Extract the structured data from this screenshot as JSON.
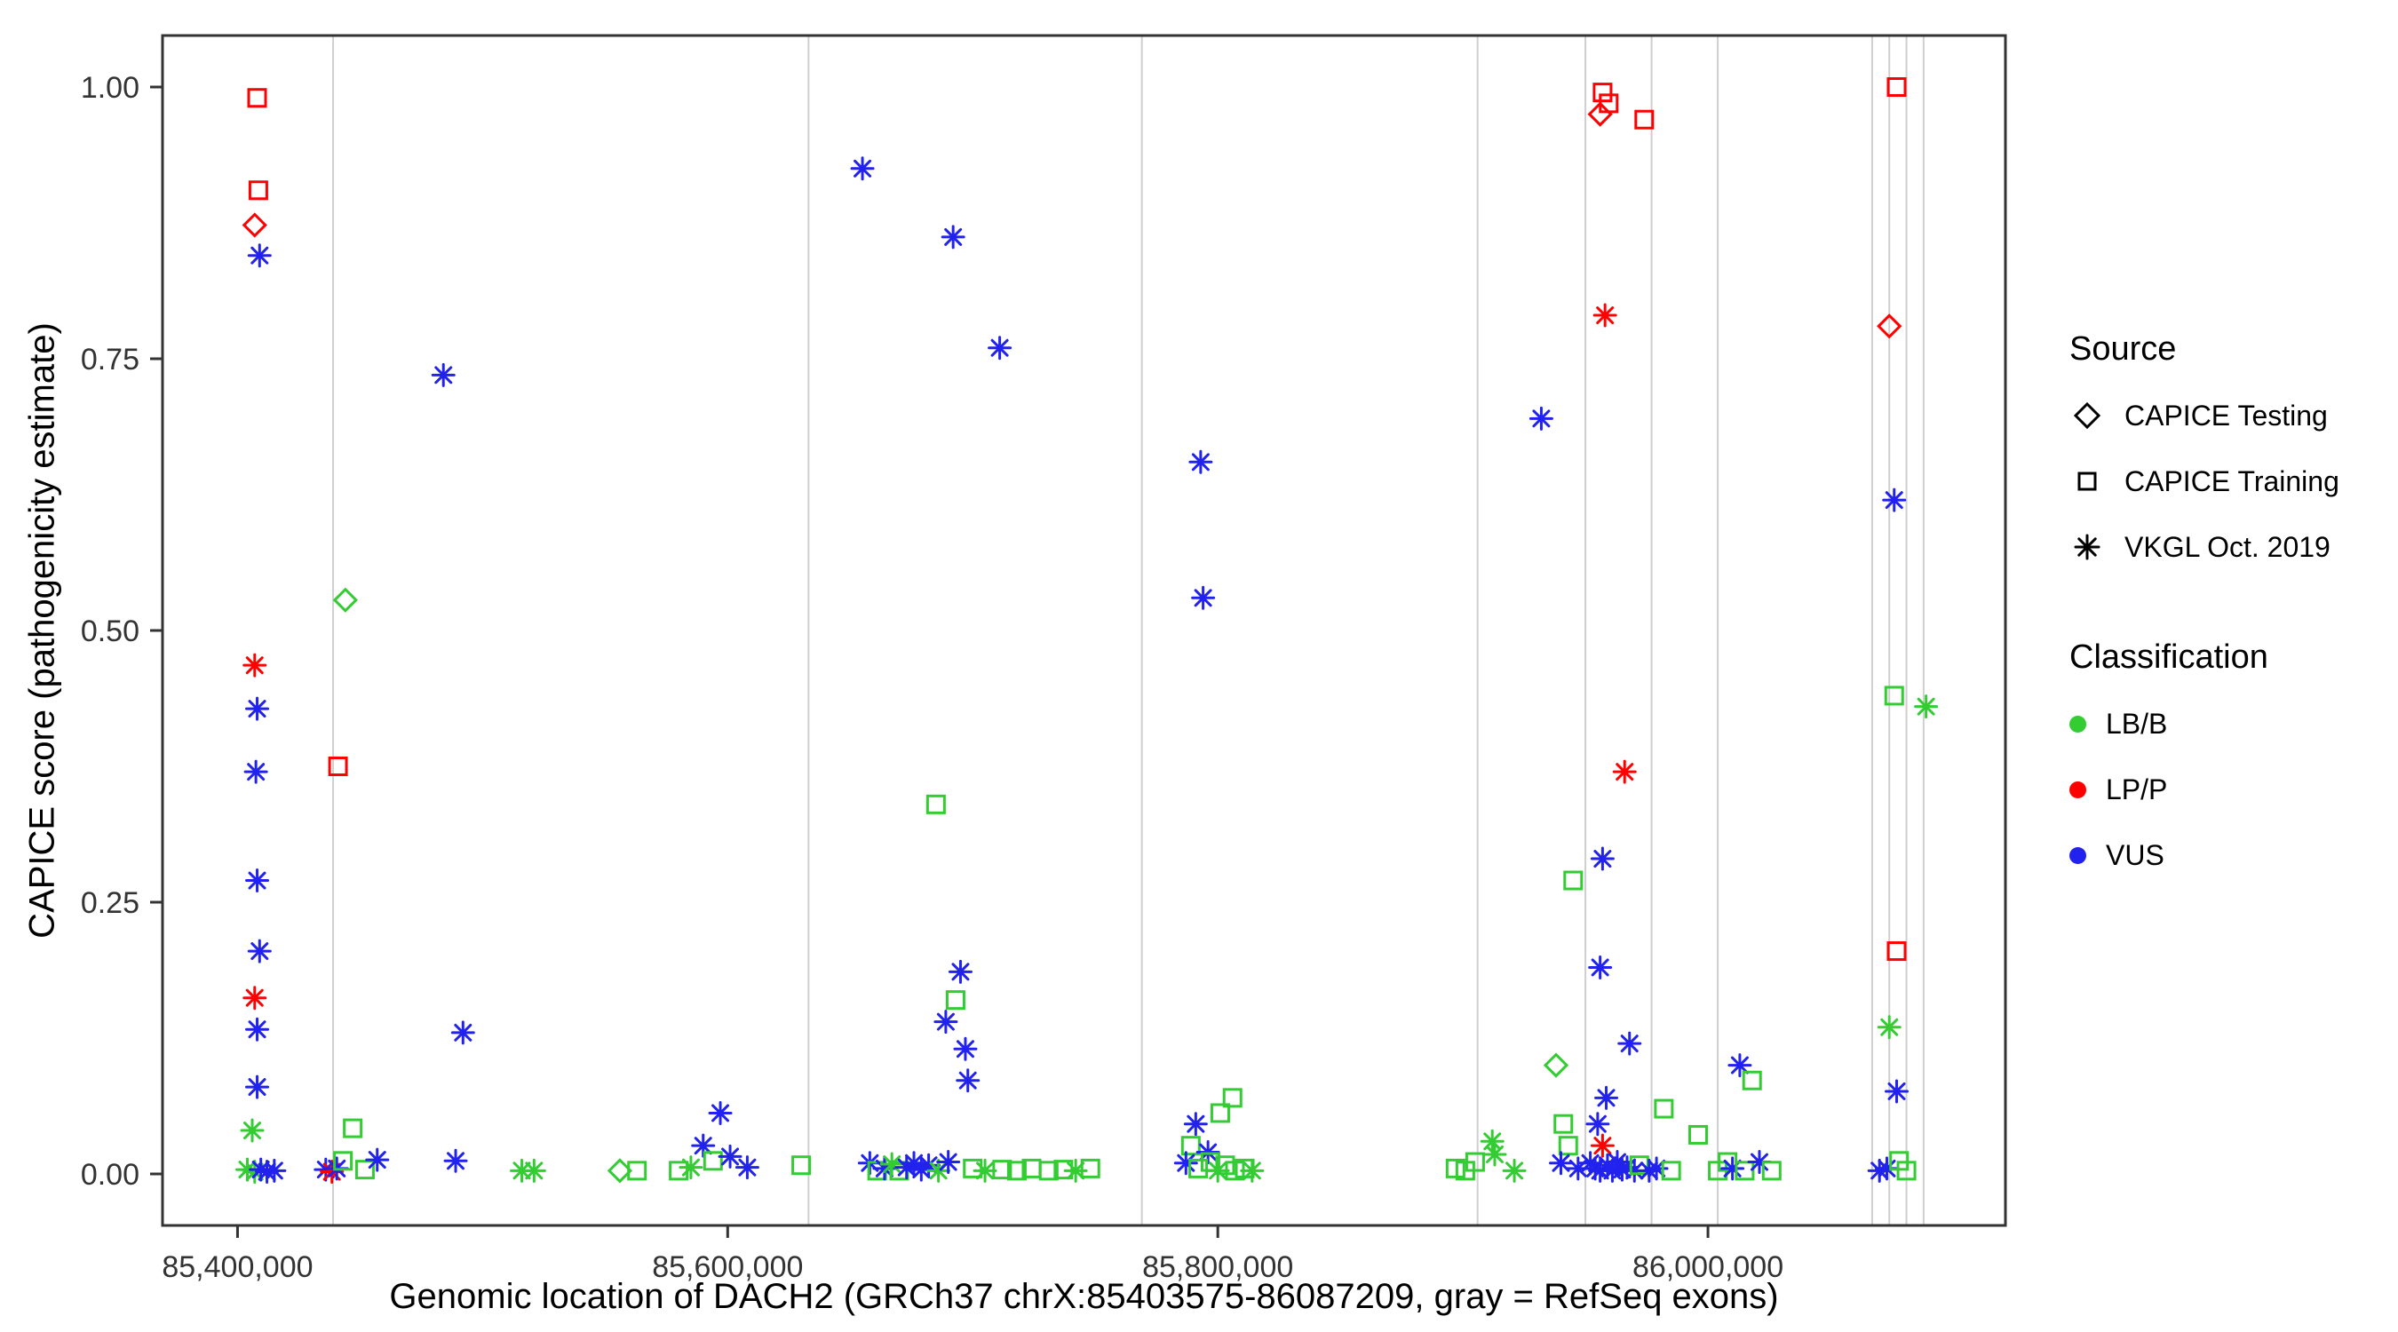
{
  "figure": {
    "x_axis_label": "Genomic location of DACH2 (GRCh37 chrX:85403575-86087209, gray = RefSeq exons)",
    "y_axis_label": "CAPICE score (pathogenicity estimate)"
  },
  "legend": {
    "source": {
      "title": "Source",
      "items": [
        {
          "label": "CAPICE Testing",
          "marker": "diamond"
        },
        {
          "label": "CAPICE Training",
          "marker": "square"
        },
        {
          "label": "VKGL Oct. 2019",
          "marker": "asterisk"
        }
      ]
    },
    "classification": {
      "title": "Classification",
      "items": [
        {
          "label": "LB/B",
          "color": "#33CC33"
        },
        {
          "label": "LP/P",
          "color": "#FF0000"
        },
        {
          "label": "VUS",
          "color": "#2222EE"
        }
      ]
    }
  },
  "chart_data": {
    "type": "scatter",
    "title": "",
    "xlabel": "Genomic location of DACH2 (GRCh37 chrX:85403575-86087209, gray = RefSeq exons)",
    "ylabel": "CAPICE score (pathogenicity estimate)",
    "xlim": [
      85369393,
      86121390
    ],
    "ylim": [
      0,
      1
    ],
    "grid": false,
    "legend_position": "right",
    "x_ticks": [
      {
        "value": 85400000,
        "label": "85,400,000"
      },
      {
        "value": 85600000,
        "label": "85,600,000"
      },
      {
        "value": 85800000,
        "label": "85,800,000"
      },
      {
        "value": 86000000,
        "label": "86,000,000"
      }
    ],
    "y_ticks": [
      {
        "value": 0.0,
        "label": "0.00"
      },
      {
        "value": 0.25,
        "label": "0.25"
      },
      {
        "value": 0.5,
        "label": "0.50"
      },
      {
        "value": 0.75,
        "label": "0.75"
      },
      {
        "value": 1.0,
        "label": "1.00"
      }
    ],
    "exon_line_color": "#CFCFCF",
    "exon_positions": [
      85439000,
      85633000,
      85769000,
      85906000,
      85950000,
      85977000,
      86004000,
      86067000,
      86074000,
      86081000,
      86088000
    ],
    "source_codes": {
      "testing": {
        "label": "CAPICE Testing",
        "marker": "diamond"
      },
      "training": {
        "label": "CAPICE Training",
        "marker": "square"
      },
      "vkgl": {
        "label": "VKGL Oct. 2019",
        "marker": "asterisk"
      }
    },
    "class_codes": {
      "LB": {
        "label": "LB/B",
        "color": "#33CC33"
      },
      "LP": {
        "label": "LP/P",
        "color": "#FF0000"
      },
      "VUS": {
        "label": "VUS",
        "color": "#2222EE"
      }
    },
    "points": [
      [
        85408000,
        0.99,
        "training",
        "LP"
      ],
      [
        85408500,
        0.905,
        "training",
        "LP"
      ],
      [
        85407000,
        0.873,
        "testing",
        "LP"
      ],
      [
        85409000,
        0.845,
        "vkgl",
        "VUS"
      ],
      [
        85407000,
        0.468,
        "vkgl",
        "LP"
      ],
      [
        85408000,
        0.428,
        "vkgl",
        "VUS"
      ],
      [
        85407500,
        0.37,
        "vkgl",
        "VUS"
      ],
      [
        85408000,
        0.27,
        "vkgl",
        "VUS"
      ],
      [
        85409000,
        0.205,
        "vkgl",
        "VUS"
      ],
      [
        85407000,
        0.162,
        "vkgl",
        "LP"
      ],
      [
        85408000,
        0.133,
        "vkgl",
        "VUS"
      ],
      [
        85408000,
        0.08,
        "vkgl",
        "VUS"
      ],
      [
        85406000,
        0.04,
        "vkgl",
        "LB"
      ],
      [
        85404000,
        0.004,
        "vkgl",
        "LB"
      ],
      [
        85407000,
        0.002,
        "vkgl",
        "LB"
      ],
      [
        85409500,
        0.004,
        "vkgl",
        "VUS"
      ],
      [
        85412000,
        0.002,
        "vkgl",
        "VUS"
      ],
      [
        85415000,
        0.003,
        "vkgl",
        "VUS"
      ],
      [
        85444000,
        0.528,
        "testing",
        "LB"
      ],
      [
        85441000,
        0.375,
        "training",
        "LP"
      ],
      [
        85447000,
        0.042,
        "training",
        "LB"
      ],
      [
        85436000,
        0.004,
        "vkgl",
        "VUS"
      ],
      [
        85438500,
        0.002,
        "vkgl",
        "LP"
      ],
      [
        85440500,
        0.005,
        "vkgl",
        "VUS"
      ],
      [
        85443000,
        0.012,
        "training",
        "LB"
      ],
      [
        85452000,
        0.004,
        "training",
        "LB"
      ],
      [
        85457000,
        0.013,
        "vkgl",
        "VUS"
      ],
      [
        85484000,
        0.735,
        "vkgl",
        "VUS"
      ],
      [
        85492000,
        0.13,
        "vkgl",
        "VUS"
      ],
      [
        85489000,
        0.012,
        "vkgl",
        "VUS"
      ],
      [
        85516000,
        0.003,
        "vkgl",
        "LB"
      ],
      [
        85521000,
        0.003,
        "vkgl",
        "LB"
      ],
      [
        85556000,
        0.003,
        "testing",
        "LB"
      ],
      [
        85563000,
        0.003,
        "training",
        "LB"
      ],
      [
        85580000,
        0.003,
        "training",
        "LB"
      ],
      [
        85585000,
        0.006,
        "vkgl",
        "LB"
      ],
      [
        85590000,
        0.026,
        "vkgl",
        "VUS"
      ],
      [
        85594000,
        0.012,
        "training",
        "LB"
      ],
      [
        85597000,
        0.056,
        "vkgl",
        "VUS"
      ],
      [
        85601000,
        0.016,
        "vkgl",
        "VUS"
      ],
      [
        85608000,
        0.006,
        "vkgl",
        "VUS"
      ],
      [
        85630000,
        0.008,
        "training",
        "LB"
      ],
      [
        85655000,
        0.925,
        "vkgl",
        "VUS"
      ],
      [
        85692000,
        0.862,
        "vkgl",
        "VUS"
      ],
      [
        85685000,
        0.34,
        "training",
        "LB"
      ],
      [
        85695000,
        0.186,
        "vkgl",
        "VUS"
      ],
      [
        85693000,
        0.16,
        "training",
        "LB"
      ],
      [
        85689000,
        0.14,
        "vkgl",
        "VUS"
      ],
      [
        85697000,
        0.115,
        "vkgl",
        "VUS"
      ],
      [
        85698000,
        0.086,
        "vkgl",
        "VUS"
      ],
      [
        85711000,
        0.76,
        "vkgl",
        "VUS"
      ],
      [
        85658000,
        0.01,
        "vkgl",
        "VUS"
      ],
      [
        85661000,
        0.003,
        "training",
        "LB"
      ],
      [
        85664000,
        0.005,
        "vkgl",
        "VUS"
      ],
      [
        85667000,
        0.009,
        "vkgl",
        "LB"
      ],
      [
        85670000,
        0.003,
        "training",
        "LB"
      ],
      [
        85673000,
        0.006,
        "vkgl",
        "VUS"
      ],
      [
        85676000,
        0.01,
        "vkgl",
        "VUS"
      ],
      [
        85679000,
        0.004,
        "vkgl",
        "VUS"
      ],
      [
        85682000,
        0.008,
        "vkgl",
        "VUS"
      ],
      [
        85686000,
        0.003,
        "vkgl",
        "LB"
      ],
      [
        85690000,
        0.011,
        "vkgl",
        "VUS"
      ],
      [
        85700000,
        0.005,
        "training",
        "LB"
      ],
      [
        85705000,
        0.003,
        "vkgl",
        "LB"
      ],
      [
        85712000,
        0.004,
        "training",
        "LB"
      ],
      [
        85718000,
        0.003,
        "training",
        "LB"
      ],
      [
        85724000,
        0.005,
        "training",
        "LB"
      ],
      [
        85731000,
        0.003,
        "training",
        "LB"
      ],
      [
        85737000,
        0.004,
        "training",
        "LB"
      ],
      [
        85742000,
        0.003,
        "vkgl",
        "LB"
      ],
      [
        85748000,
        0.005,
        "training",
        "LB"
      ],
      [
        85793000,
        0.655,
        "vkgl",
        "VUS"
      ],
      [
        85794000,
        0.53,
        "vkgl",
        "VUS"
      ],
      [
        85791000,
        0.046,
        "vkgl",
        "VUS"
      ],
      [
        85801000,
        0.056,
        "training",
        "LB"
      ],
      [
        85806000,
        0.07,
        "training",
        "LB"
      ],
      [
        85789000,
        0.026,
        "training",
        "LB"
      ],
      [
        85796000,
        0.02,
        "vkgl",
        "VUS"
      ],
      [
        85787000,
        0.01,
        "vkgl",
        "VUS"
      ],
      [
        85792000,
        0.005,
        "training",
        "LB"
      ],
      [
        85797000,
        0.011,
        "training",
        "LB"
      ],
      [
        85800000,
        0.003,
        "vkgl",
        "LB"
      ],
      [
        85803000,
        0.008,
        "training",
        "LB"
      ],
      [
        85807000,
        0.003,
        "training",
        "LB"
      ],
      [
        85811000,
        0.005,
        "training",
        "LB"
      ],
      [
        85814000,
        0.003,
        "vkgl",
        "LB"
      ],
      [
        85897000,
        0.005,
        "training",
        "LB"
      ],
      [
        85901000,
        0.003,
        "training",
        "LB"
      ],
      [
        85905000,
        0.011,
        "training",
        "LB"
      ],
      [
        85912000,
        0.03,
        "vkgl",
        "LB"
      ],
      [
        85913000,
        0.018,
        "vkgl",
        "LB"
      ],
      [
        85921000,
        0.003,
        "vkgl",
        "LB"
      ],
      [
        85932000,
        0.695,
        "vkgl",
        "VUS"
      ],
      [
        85938000,
        0.1,
        "testing",
        "LB"
      ],
      [
        85945000,
        0.27,
        "training",
        "LB"
      ],
      [
        85941000,
        0.046,
        "training",
        "LB"
      ],
      [
        85943000,
        0.026,
        "training",
        "LB"
      ],
      [
        85940000,
        0.01,
        "vkgl",
        "VUS"
      ],
      [
        85947000,
        0.005,
        "vkgl",
        "VUS"
      ],
      [
        85957000,
        0.995,
        "training",
        "LP"
      ],
      [
        85959500,
        0.985,
        "training",
        "LP"
      ],
      [
        85956000,
        0.975,
        "testing",
        "LP"
      ],
      [
        85974000,
        0.97,
        "training",
        "LP"
      ],
      [
        85958000,
        0.79,
        "vkgl",
        "LP"
      ],
      [
        85966000,
        0.37,
        "vkgl",
        "LP"
      ],
      [
        85957000,
        0.29,
        "vkgl",
        "VUS"
      ],
      [
        85956000,
        0.19,
        "vkgl",
        "VUS"
      ],
      [
        85968000,
        0.12,
        "vkgl",
        "VUS"
      ],
      [
        85958500,
        0.07,
        "vkgl",
        "VUS"
      ],
      [
        85955000,
        0.046,
        "vkgl",
        "VUS"
      ],
      [
        85957000,
        0.026,
        "vkgl",
        "LP"
      ],
      [
        85952000,
        0.01,
        "vkgl",
        "VUS"
      ],
      [
        85954000,
        0.005,
        "vkgl",
        "VUS"
      ],
      [
        85956000,
        0.003,
        "vkgl",
        "VUS"
      ],
      [
        85959000,
        0.008,
        "vkgl",
        "VUS"
      ],
      [
        85961000,
        0.003,
        "vkgl",
        "VUS"
      ],
      [
        85963000,
        0.011,
        "vkgl",
        "VUS"
      ],
      [
        85965000,
        0.004,
        "vkgl",
        "VUS"
      ],
      [
        85967000,
        0.006,
        "vkgl",
        "VUS"
      ],
      [
        85970000,
        0.003,
        "vkgl",
        "VUS"
      ],
      [
        85972000,
        0.008,
        "training",
        "LB"
      ],
      [
        85976000,
        0.003,
        "vkgl",
        "VUS"
      ],
      [
        85979000,
        0.005,
        "vkgl",
        "VUS"
      ],
      [
        85982000,
        0.06,
        "training",
        "LB"
      ],
      [
        85985000,
        0.003,
        "training",
        "LB"
      ],
      [
        85996000,
        0.036,
        "training",
        "LB"
      ],
      [
        86004000,
        0.003,
        "training",
        "LB"
      ],
      [
        86008000,
        0.011,
        "training",
        "LB"
      ],
      [
        86013000,
        0.1,
        "vkgl",
        "VUS"
      ],
      [
        86018000,
        0.086,
        "training",
        "LB"
      ],
      [
        86010000,
        0.005,
        "vkgl",
        "VUS"
      ],
      [
        86015000,
        0.003,
        "training",
        "LB"
      ],
      [
        86021000,
        0.011,
        "vkgl",
        "VUS"
      ],
      [
        86026000,
        0.003,
        "training",
        "LB"
      ],
      [
        86077000,
        1.0,
        "training",
        "LP"
      ],
      [
        86074000,
        0.78,
        "testing",
        "LP"
      ],
      [
        86076000,
        0.62,
        "vkgl",
        "VUS"
      ],
      [
        86076000,
        0.44,
        "training",
        "LB"
      ],
      [
        86089000,
        0.43,
        "vkgl",
        "LB"
      ],
      [
        86077000,
        0.205,
        "training",
        "LP"
      ],
      [
        86074000,
        0.135,
        "vkgl",
        "LB"
      ],
      [
        86077000,
        0.076,
        "vkgl",
        "VUS"
      ],
      [
        86070000,
        0.003,
        "vkgl",
        "VUS"
      ],
      [
        86073000,
        0.005,
        "vkgl",
        "VUS"
      ],
      [
        86078000,
        0.012,
        "training",
        "LB"
      ],
      [
        86081000,
        0.003,
        "training",
        "LB"
      ]
    ]
  }
}
